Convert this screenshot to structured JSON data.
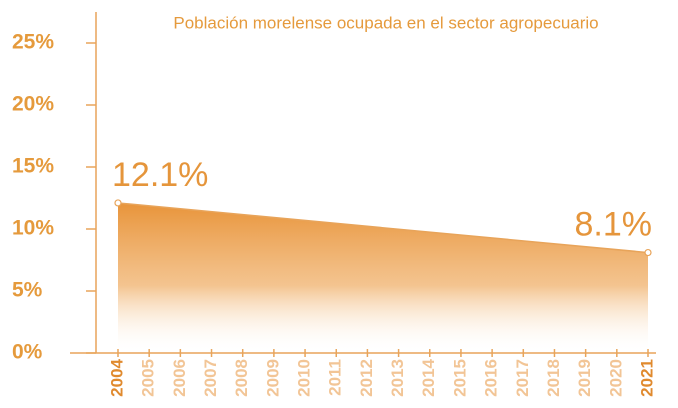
{
  "chart_data": {
    "type": "area",
    "title": "Población morelense ocupada en el sector agropecuario",
    "x": [
      2004,
      2021
    ],
    "values": [
      12.1,
      8.1
    ],
    "value_labels": [
      "12.1%",
      "8.1%"
    ],
    "color": "#e8943a",
    "xlim": [
      2004,
      2021
    ],
    "xticks": [
      2004,
      2005,
      2006,
      2007,
      2008,
      2009,
      2010,
      2011,
      2012,
      2013,
      2014,
      2015,
      2016,
      2017,
      2018,
      2019,
      2020,
      2021
    ],
    "ylim": [
      0,
      27.5
    ],
    "yticks": [
      {
        "value": 0,
        "label": "0%"
      },
      {
        "value": 5,
        "label": "5%"
      },
      {
        "value": 10,
        "label": "10%"
      },
      {
        "value": 15,
        "label": "15%"
      },
      {
        "value": 20,
        "label": "20%"
      },
      {
        "value": 25,
        "label": "25%"
      }
    ]
  }
}
